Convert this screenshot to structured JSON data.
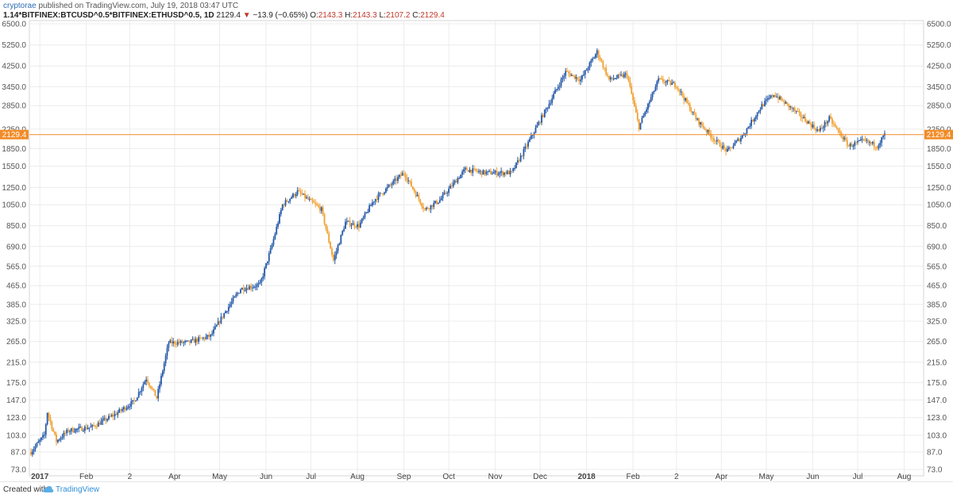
{
  "header": {
    "publisher": "cryptorae",
    "published_text": "published on TradingView.com, July 19, 2018 03:47 UTC",
    "symbol": "1.14*BITFINEX:BTCUSD^0.5*BITFINEX:ETHUSD^0.5, 1D",
    "last": "2129.4",
    "change": "−13.9 (−0.65%)",
    "o_label": "O:",
    "o_value": "2143.3",
    "h_label": "H:",
    "h_value": "2143.3",
    "l_label": "L:",
    "l_value": "2107.2",
    "c_label": "C:",
    "c_value": "2129.4"
  },
  "footer": {
    "created_with": "Created with",
    "brand": "TradingView",
    "logo_icon": "tradingview-cloud-icon"
  },
  "chart_data": {
    "type": "candlestick",
    "scale": "log",
    "grid": true,
    "ylim": [
      73.0,
      6500.0
    ],
    "y_ticks": [
      "6500.0",
      "5250.0",
      "4250.0",
      "3450.0",
      "2850.0",
      "2250.0",
      "1850.0",
      "1550.0",
      "1250.0",
      "1050.0",
      "850.0",
      "690.0",
      "565.0",
      "465.0",
      "385.0",
      "325.0",
      "265.0",
      "215.0",
      "175.0",
      "147.0",
      "123.0",
      "103.0",
      "87.0",
      "73.0"
    ],
    "x_ticks": [
      {
        "label": "2017",
        "date": "2017-01-01",
        "bold": true
      },
      {
        "label": "Feb",
        "date": "2017-02-01"
      },
      {
        "label": "2",
        "date": "2017-03-02"
      },
      {
        "label": "Apr",
        "date": "2017-04-01"
      },
      {
        "label": "May",
        "date": "2017-05-01"
      },
      {
        "label": "Jun",
        "date": "2017-06-01"
      },
      {
        "label": "Jul",
        "date": "2017-07-01"
      },
      {
        "label": "Aug",
        "date": "2017-08-01"
      },
      {
        "label": "Sep",
        "date": "2017-09-01"
      },
      {
        "label": "Oct",
        "date": "2017-10-01"
      },
      {
        "label": "Nov",
        "date": "2017-11-01"
      },
      {
        "label": "Dec",
        "date": "2017-12-01"
      },
      {
        "label": "2018",
        "date": "2018-01-01",
        "bold": true
      },
      {
        "label": "Feb",
        "date": "2018-02-01"
      },
      {
        "label": "2",
        "date": "2018-03-02"
      },
      {
        "label": "Apr",
        "date": "2018-04-01"
      },
      {
        "label": "May",
        "date": "2018-05-01"
      },
      {
        "label": "Jun",
        "date": "2018-06-01"
      },
      {
        "label": "Jul",
        "date": "2018-07-01"
      },
      {
        "label": "Aug",
        "date": "2018-08-01"
      }
    ],
    "last_price": 2129.4,
    "last_price_label": "2129.4",
    "colors": {
      "up": "#2458a8",
      "down": "#f0a030",
      "last_price": "#f28c28",
      "grid": "#ececec"
    },
    "close_path": [
      [
        "2016-12-26",
        87
      ],
      [
        "2017-01-04",
        103
      ],
      [
        "2017-01-06",
        130
      ],
      [
        "2017-01-12",
        97
      ],
      [
        "2017-01-20",
        108
      ],
      [
        "2017-02-05",
        112
      ],
      [
        "2017-02-20",
        127
      ],
      [
        "2017-03-05",
        145
      ],
      [
        "2017-03-13",
        183
      ],
      [
        "2017-03-20",
        150
      ],
      [
        "2017-03-28",
        262
      ],
      [
        "2017-04-10",
        262
      ],
      [
        "2017-04-25",
        280
      ],
      [
        "2017-05-05",
        360
      ],
      [
        "2017-05-15",
        450
      ],
      [
        "2017-05-28",
        470
      ],
      [
        "2017-06-05",
        700
      ],
      [
        "2017-06-12",
        1050
      ],
      [
        "2017-06-22",
        1200
      ],
      [
        "2017-07-08",
        1000
      ],
      [
        "2017-07-16",
        600
      ],
      [
        "2017-07-24",
        880
      ],
      [
        "2017-08-02",
        850
      ],
      [
        "2017-08-12",
        1100
      ],
      [
        "2017-09-01",
        1450
      ],
      [
        "2017-09-15",
        1000
      ],
      [
        "2017-09-25",
        1100
      ],
      [
        "2017-10-12",
        1500
      ],
      [
        "2017-10-25",
        1450
      ],
      [
        "2017-11-12",
        1450
      ],
      [
        "2017-11-20",
        1800
      ],
      [
        "2017-12-08",
        3000
      ],
      [
        "2017-12-18",
        4000
      ],
      [
        "2017-12-28",
        3700
      ],
      [
        "2018-01-08",
        4900
      ],
      [
        "2018-01-16",
        3700
      ],
      [
        "2018-01-28",
        3900
      ],
      [
        "2018-02-05",
        2300
      ],
      [
        "2018-02-18",
        3700
      ],
      [
        "2018-03-02",
        3500
      ],
      [
        "2018-03-15",
        2500
      ],
      [
        "2018-03-28",
        2000
      ],
      [
        "2018-04-05",
        1800
      ],
      [
        "2018-04-15",
        2100
      ],
      [
        "2018-04-28",
        2850
      ],
      [
        "2018-05-06",
        3200
      ],
      [
        "2018-05-20",
        2700
      ],
      [
        "2018-06-05",
        2200
      ],
      [
        "2018-06-12",
        2500
      ],
      [
        "2018-06-25",
        1900
      ],
      [
        "2018-07-05",
        2000
      ],
      [
        "2018-07-14",
        1900
      ],
      [
        "2018-07-19",
        2129.4
      ]
    ]
  }
}
